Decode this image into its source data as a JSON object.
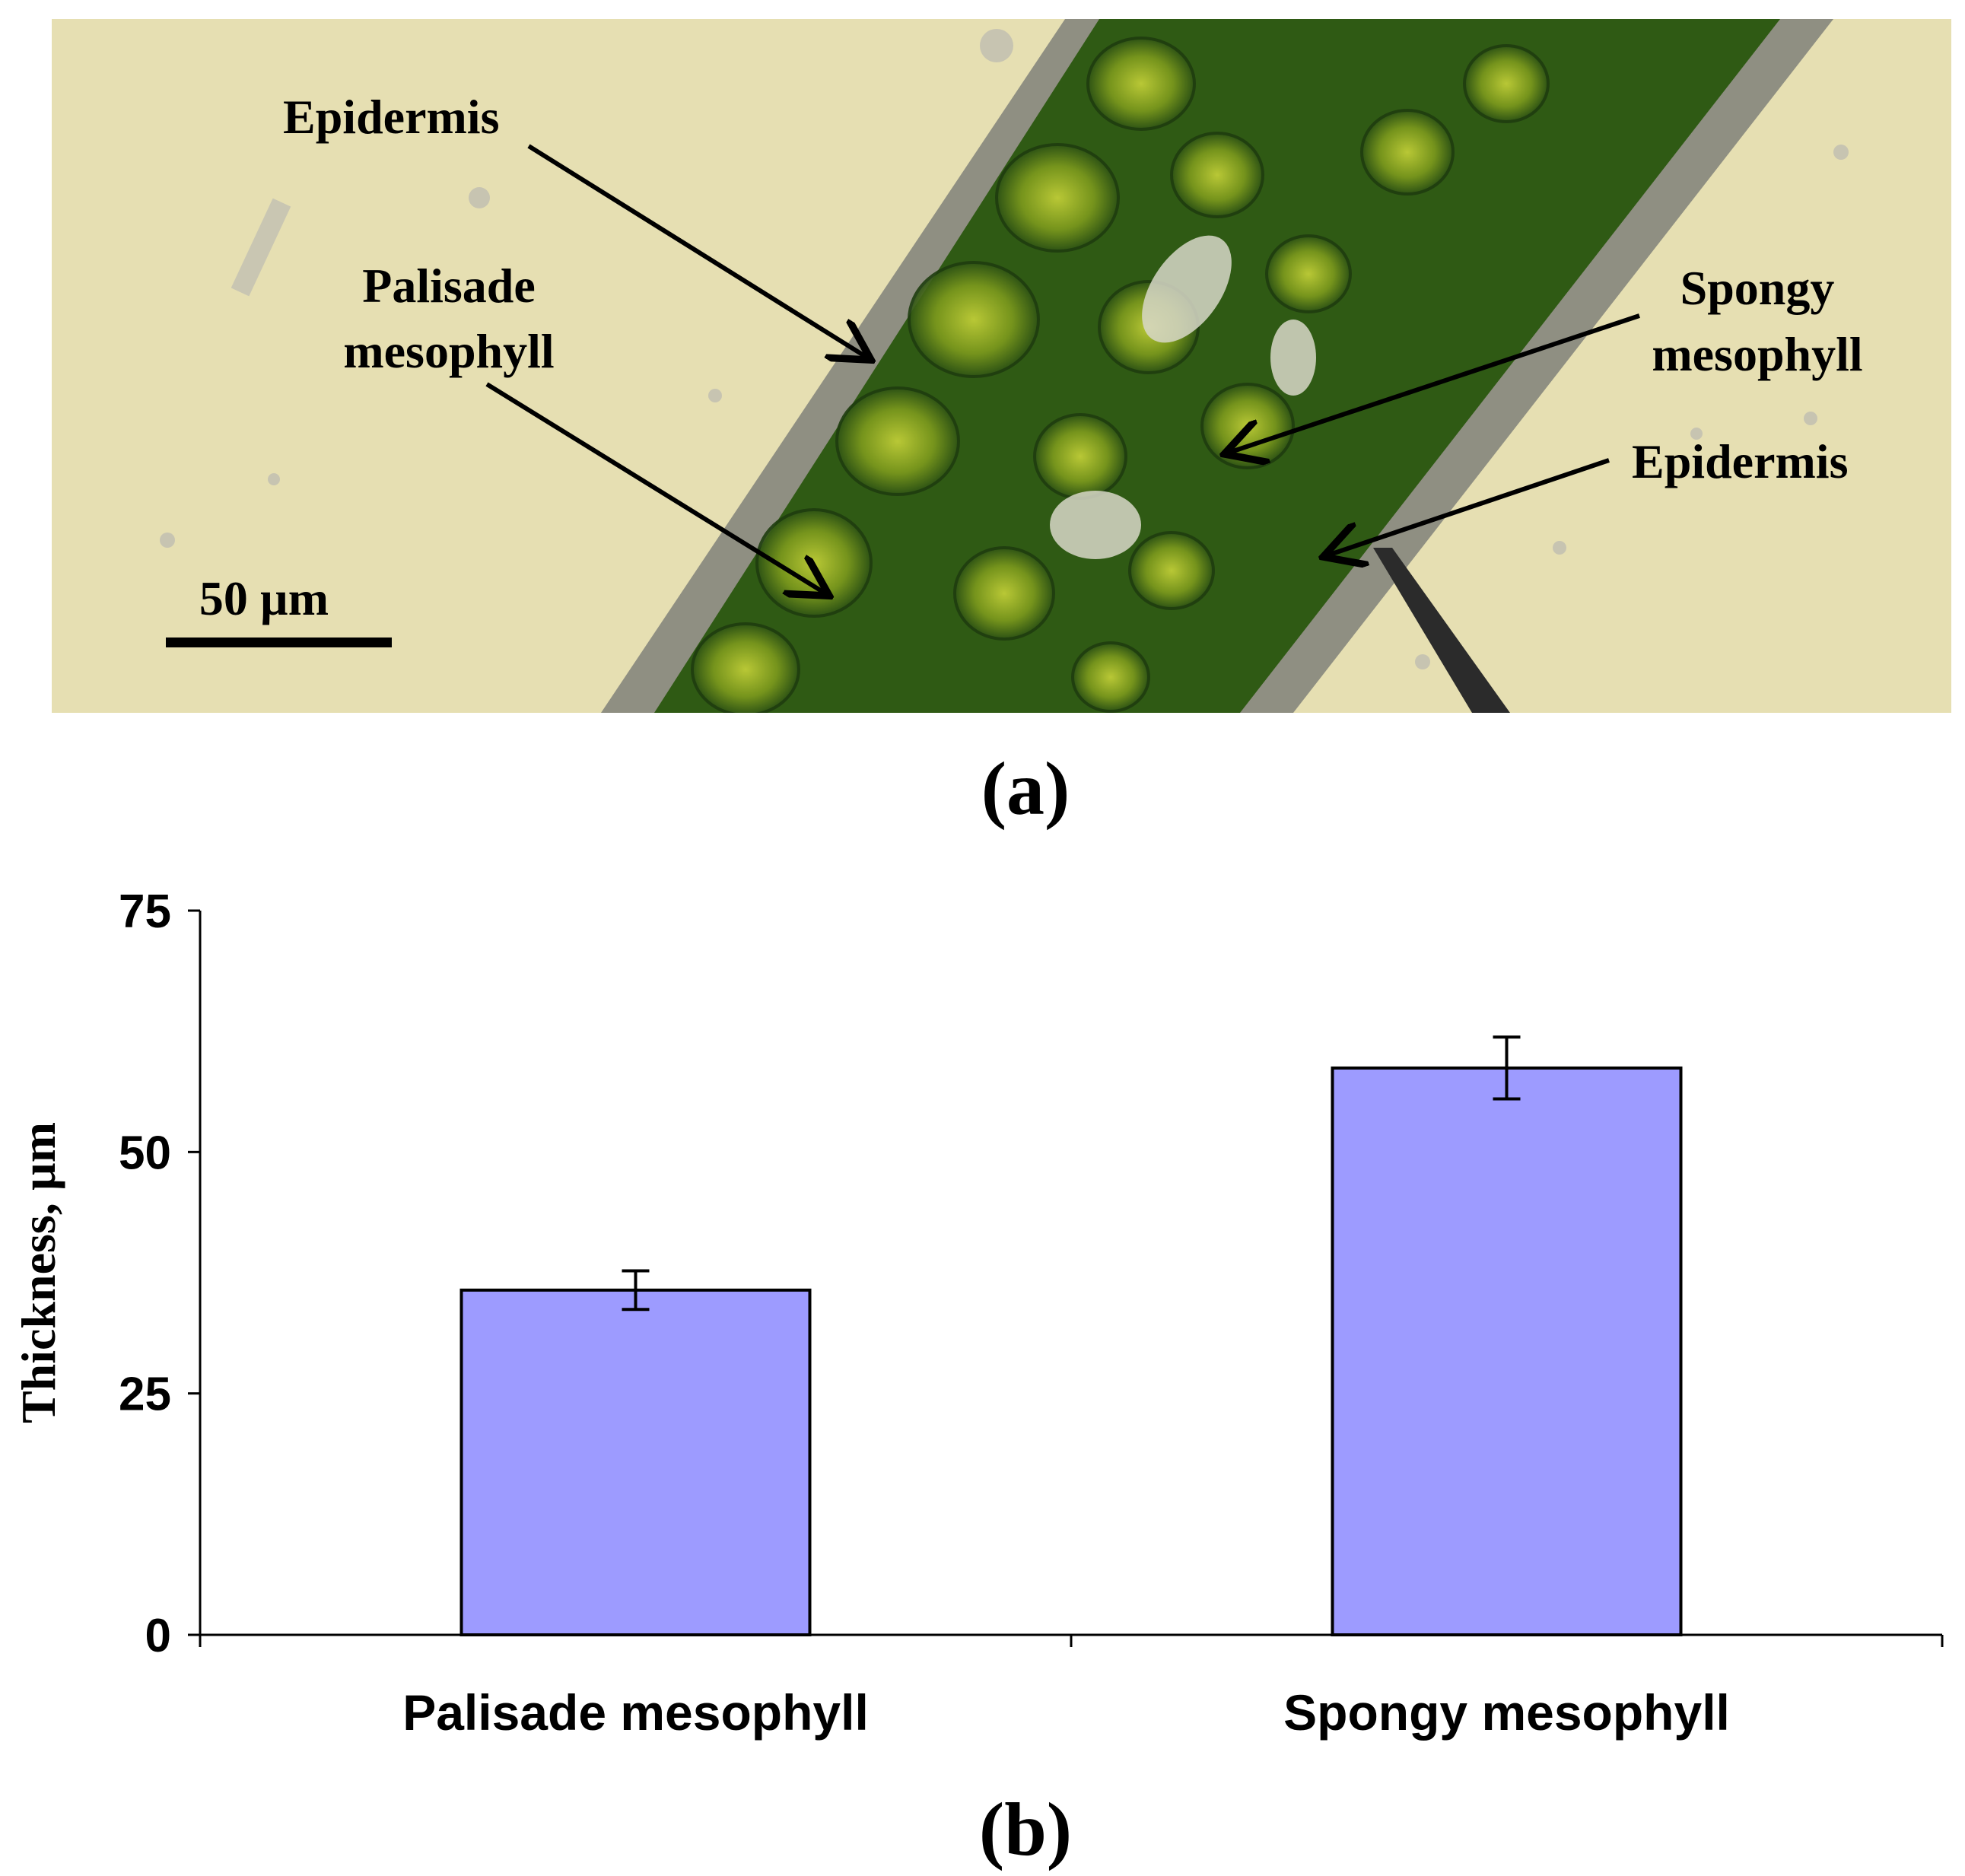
{
  "panel_a": {
    "caption": "(a)",
    "labels": {
      "epidermis_top": "Epidermis",
      "palisade_line1": "Palisade",
      "palisade_line2": "mesophyll",
      "spongy_line1": "Spongy",
      "spongy_line2": "mesophyll",
      "epidermis_bottom": "Epidermis"
    },
    "scale_bar_label": "50 µm",
    "colors": {
      "background": "#e6dfb2",
      "tissue_dark": "#2f5a14",
      "tissue_light": "#9fb41c",
      "epidermis": "#8f8f82"
    }
  },
  "panel_b": {
    "caption": "(b)"
  },
  "chart_data": {
    "type": "bar",
    "categories": [
      "Palisade mesophyll",
      "Spongy mesophyll"
    ],
    "values": [
      35.7,
      58.7
    ],
    "errors": [
      2.0,
      3.2
    ],
    "title": "",
    "xlabel": "",
    "ylabel": "Thickness, µm",
    "ylim": [
      0,
      75
    ],
    "yticks": [
      0,
      25,
      50,
      75
    ],
    "grid": false,
    "bar_color": "#9d9bff"
  }
}
